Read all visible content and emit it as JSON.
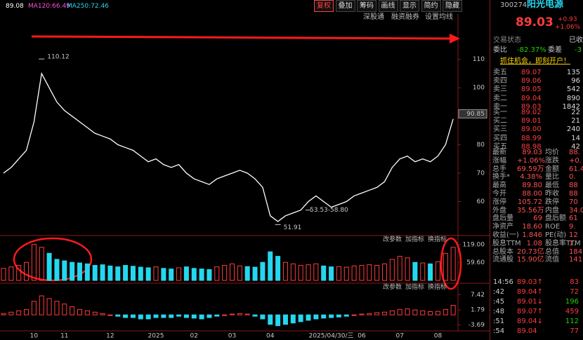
{
  "toolbar": {
    "ma_legend": [
      "89.08",
      "MA120:66.49",
      "MA250:72.46"
    ],
    "buttons": [
      "复权",
      "叠加",
      "筹码",
      "画线",
      "显示",
      "简约",
      "隐藏"
    ],
    "sub_buttons": [
      "深股通",
      "融资融券",
      "设置均线"
    ]
  },
  "chart_data": [
    {
      "type": "line",
      "title": "price",
      "color": "#ffffff",
      "categories": [
        null,
        null,
        null,
        null,
        "10",
        null,
        null,
        null,
        "11",
        null,
        null,
        null,
        null,
        null,
        "12",
        null,
        null,
        null,
        null,
        null,
        "2025",
        null,
        null,
        null,
        null,
        "02",
        null,
        null,
        null,
        null,
        "03",
        null,
        null,
        null,
        null,
        "04",
        null,
        null,
        null,
        null,
        null,
        null,
        null,
        "2025/04/30/三",
        null,
        null,
        null,
        "06",
        null,
        null,
        null,
        null,
        "07",
        null,
        null,
        null,
        null,
        "08",
        null,
        null
      ],
      "values": [
        70,
        72,
        75,
        78,
        88,
        105,
        100,
        95,
        92,
        90,
        88,
        86,
        84,
        83,
        82,
        80,
        79,
        78,
        76,
        74,
        75,
        73,
        72,
        73,
        70,
        68,
        67,
        66,
        68,
        69,
        70,
        71,
        70,
        68,
        65,
        55,
        53,
        55,
        56,
        57,
        60,
        62,
        60,
        58,
        59,
        60,
        62,
        63,
        64,
        65,
        67,
        72,
        75,
        76,
        74,
        75,
        74,
        76,
        80,
        89.03
      ],
      "ylim": [
        52,
        121
      ],
      "yticks": [
        60,
        70,
        80,
        90,
        100,
        110
      ],
      "annotations": [
        {
          "text": "110.12",
          "value": 110.12
        },
        {
          "text": "51.91",
          "value": 51.91
        },
        {
          "text": "53.53-58.80",
          "value": 57
        },
        {
          "text": "90.85",
          "value": 90.85
        }
      ]
    },
    {
      "type": "bar",
      "title": "volume",
      "values": [
        40,
        45,
        50,
        60,
        120,
        110,
        90,
        70,
        65,
        60,
        58,
        55,
        50,
        52,
        48,
        45,
        50,
        47,
        44,
        42,
        45,
        40,
        38,
        42,
        45,
        40,
        38,
        36,
        45,
        50,
        55,
        48,
        46,
        44,
        60,
        95,
        80,
        60,
        55,
        50,
        52,
        55,
        48,
        45,
        46,
        44,
        48,
        50,
        52,
        50,
        55,
        70,
        80,
        75,
        60,
        58,
        55,
        62,
        90,
        110
      ],
      "ylim": [
        0,
        135
      ],
      "yticks": [
        {
          "value": 119,
          "label": "119.00"
        },
        {
          "value": 59.6,
          "label": "59.60"
        }
      ],
      "up_color": "#ff3c3c",
      "down_color": "#25d7ee"
    },
    {
      "type": "bar",
      "title": "macd",
      "values": [
        0.5,
        1,
        1.5,
        2,
        5,
        7,
        6,
        5,
        4,
        3,
        2,
        1.5,
        1,
        0.5,
        0,
        -0.5,
        -1,
        -1,
        -1.5,
        -1.5,
        -1,
        -1,
        -1,
        -0.5,
        -1,
        -1.2,
        -1.5,
        -1,
        -0.5,
        0,
        0.3,
        0.5,
        0.3,
        -0.5,
        -1.5,
        -3.5,
        -4,
        -3.5,
        -3,
        -2.5,
        -2,
        -1.5,
        -1.2,
        -1,
        -0.8,
        -0.5,
        0,
        0.3,
        0.5,
        0.8,
        1,
        1.5,
        2,
        2.2,
        1.8,
        1.5,
        1.2,
        1.3,
        2,
        3.5
      ],
      "ylim": [
        -5.9,
        10.1
      ],
      "yticks": [
        {
          "value": 7.42,
          "label": "7.42"
        },
        {
          "value": 1.79,
          "label": "1.79"
        },
        {
          "value": -3.69,
          "label": "-3.69"
        }
      ],
      "up_color": "#ff3c3c",
      "down_color": "#25d7ee"
    }
  ],
  "panel_tabs": [
    [
      "改参数",
      "加指标",
      "换指标"
    ],
    [
      "改参数",
      "加指标",
      "换指标"
    ]
  ],
  "quote": {
    "code": "300274",
    "name": "阳光电源",
    "price": "89.03",
    "change": "+0.93",
    "pct": "+1.06%",
    "status_label": "交易状态",
    "status": "已收",
    "wb_label": "委比",
    "wb": "-82.37%",
    "wc_label": "委差",
    "wc": "-3",
    "banner": "抓住机会，即刻开户！",
    "asks": [
      [
        "卖五",
        "89.07",
        "135"
      ],
      [
        "卖四",
        "89.06",
        "96"
      ],
      [
        "卖三",
        "89.05",
        "542"
      ],
      [
        "卖二",
        "89.04",
        "890"
      ],
      [
        "卖一",
        "89.03",
        "1842"
      ]
    ],
    "bids": [
      [
        "买一",
        "89.02",
        "22"
      ],
      [
        "买二",
        "89.01",
        "21"
      ],
      [
        "买三",
        "89.00",
        "240"
      ],
      [
        "买四",
        "88.99",
        "14"
      ],
      [
        "买五",
        "88.98",
        "42"
      ]
    ],
    "stats": [
      [
        "最新",
        "89.03",
        "均价",
        "88."
      ],
      [
        "涨幅",
        "+1.06%",
        "涨跌",
        "+0."
      ],
      [
        "总手",
        "69.59万",
        "金额",
        "61.4"
      ],
      [
        "换手*",
        "4.38%",
        "量比",
        "0."
      ],
      [
        "最高",
        "89.80",
        "最低",
        "88"
      ],
      [
        "今开",
        "88.00",
        "昨收",
        "88"
      ],
      [
        "涨停",
        "105.72",
        "跌停",
        "70"
      ],
      [
        "外盘",
        "35.56万",
        "内盘",
        "34.0"
      ],
      [
        "盘后量",
        "69",
        "盘后额",
        "61"
      ],
      [
        "净资产",
        "18.60",
        "ROE",
        "9."
      ],
      [
        "收益(一)",
        "1.846",
        "PE(动)",
        "12"
      ],
      [
        "股息TTM",
        "1.08",
        "股息率TTM",
        "1."
      ],
      [
        "总股本",
        "20.73亿",
        "总值",
        "184"
      ],
      [
        "流通股",
        "15.90亿",
        "流值",
        "141"
      ]
    ],
    "ticks": [
      [
        "14:56",
        "89.03↑",
        "83"
      ],
      [
        ":42",
        "89.04↑",
        "72"
      ],
      [
        ":45",
        "89.01↓",
        "196"
      ],
      [
        ":48",
        "89.07↑",
        "459"
      ],
      [
        ":51",
        "89.04↓",
        "112"
      ],
      [
        ":54",
        "89.04",
        "77"
      ]
    ]
  }
}
